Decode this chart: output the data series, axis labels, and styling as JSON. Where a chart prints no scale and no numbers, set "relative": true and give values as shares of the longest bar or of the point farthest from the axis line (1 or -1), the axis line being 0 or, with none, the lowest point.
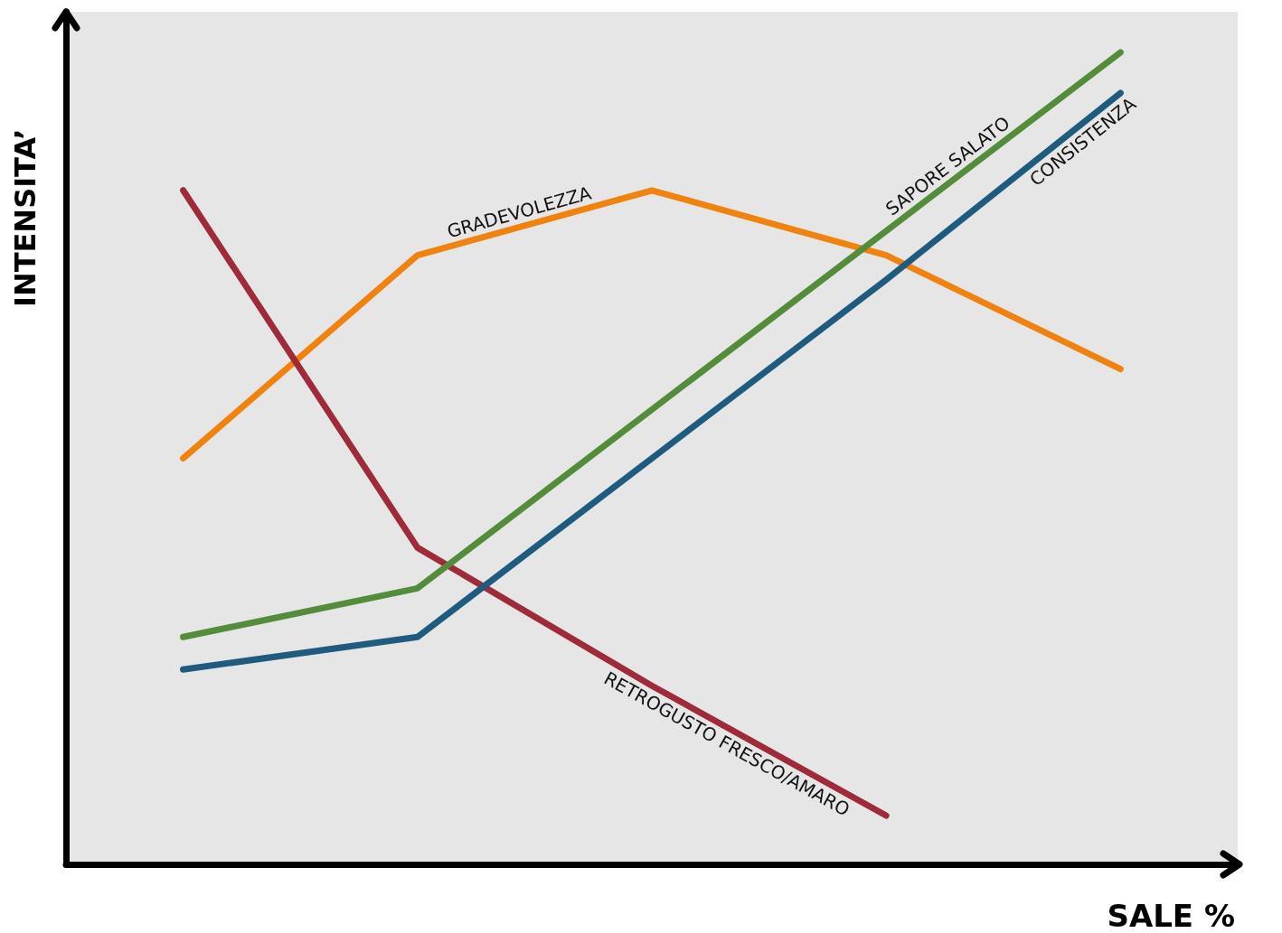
{
  "chart_data": {
    "type": "line",
    "relative": true,
    "xlabel": "SALE %",
    "ylabel": "INTENSITA’",
    "categories": [
      null,
      null,
      null,
      null,
      null
    ],
    "grid": false,
    "legend": false,
    "marker": "none",
    "line_style": "solid",
    "series": [
      {
        "name": "GRADEVOLEZZA",
        "color": "#f0830f",
        "values": [
          0.5,
          0.75,
          0.83,
          0.75,
          0.61
        ]
      },
      {
        "name": "RETROGUSTO FRESCO/AMARO",
        "color": "#9e2a3a",
        "values": [
          0.83,
          0.39,
          0.22,
          0.06,
          null
        ]
      },
      {
        "name": "SAPORE SALATO",
        "color": "#548c3c",
        "values": [
          0.28,
          0.34,
          0.56,
          0.78,
          1
        ]
      },
      {
        "name": "CONSISTENZA",
        "color": "#1f5a7f",
        "values": [
          0.24,
          0.28,
          0.5,
          0.72,
          0.95
        ]
      }
    ]
  }
}
